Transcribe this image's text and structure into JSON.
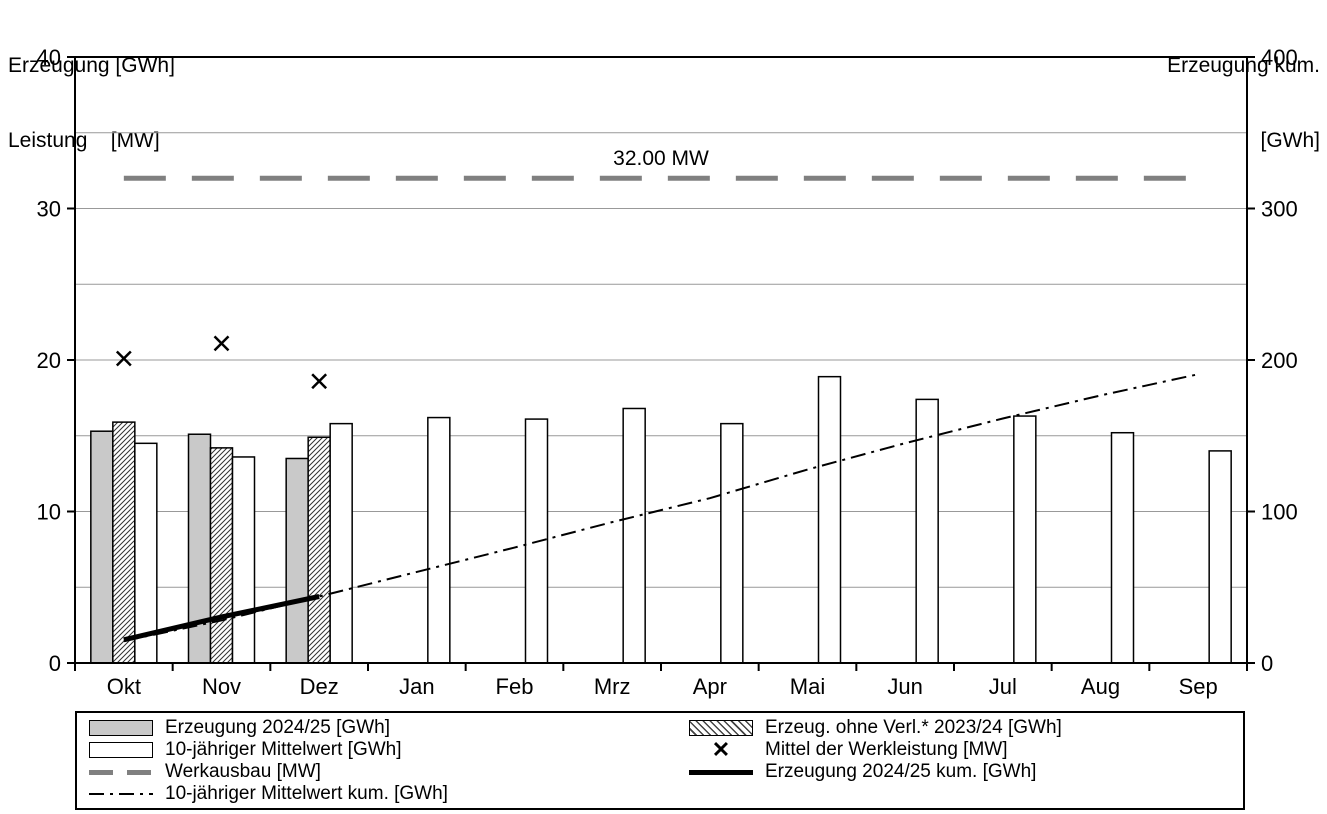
{
  "titles": {
    "left_line1": "Erzeugung [GWh]",
    "left_line2": "Leistung    [MW]",
    "right_line1": "Erzeugung kum.",
    "right_line2": "[GWh]"
  },
  "colors": {
    "bar_gray": "#c9c9c9",
    "werkausbau_line": "#808080",
    "grid": "#999999",
    "black": "#000000"
  },
  "legend": {
    "items": [
      {
        "label": "Erzeugung 2024/25 [GWh]",
        "swatch": "bar-gray"
      },
      {
        "label": "10-jähriger Mittelwert [GWh]",
        "swatch": "bar-white"
      },
      {
        "label": "Werkausbau [MW]",
        "swatch": "line-dashed-gray"
      },
      {
        "label": "10-jähriger Mittelwert kum. [GWh]",
        "swatch": "line-dashdot"
      },
      {
        "label": "Erzeug. ohne Verl.* 2023/24 [GWh]",
        "swatch": "bar-hatched"
      },
      {
        "label": "Mittel der Werkleistung [MW]",
        "swatch": "marker-x",
        "glyph": "✕"
      },
      {
        "label": "Erzeugung 2024/25 kum. [GWh]",
        "swatch": "line-thick-black"
      }
    ]
  },
  "chart_data": {
    "type": "bar",
    "categories": [
      "Okt",
      "Nov",
      "Dez",
      "Jan",
      "Feb",
      "Mrz",
      "Apr",
      "Mai",
      "Jun",
      "Jul",
      "Aug",
      "Sep"
    ],
    "left_axis": {
      "title": "Erzeugung [GWh] / Leistung [MW]",
      "min": 0,
      "max": 40,
      "ticks": [
        0,
        10,
        20,
        30,
        40
      ],
      "grid_step": 5
    },
    "right_axis": {
      "title": "Erzeugung kum. [GWh]",
      "min": 0,
      "max": 400,
      "ticks": [
        0,
        100,
        200,
        300,
        400
      ]
    },
    "series": [
      {
        "name": "Erzeugung 2024/25 [GWh]",
        "kind": "bar",
        "style": "gray",
        "axis": "left",
        "values": [
          15.3,
          15.1,
          13.5,
          null,
          null,
          null,
          null,
          null,
          null,
          null,
          null,
          null
        ]
      },
      {
        "name": "Erzeug. ohne Verl.* 2023/24 [GWh]",
        "kind": "bar",
        "style": "hatched",
        "axis": "left",
        "values": [
          15.9,
          14.2,
          14.9,
          null,
          null,
          null,
          null,
          null,
          null,
          null,
          null,
          null
        ]
      },
      {
        "name": "10-jähriger Mittelwert [GWh]",
        "kind": "bar",
        "style": "white",
        "axis": "left",
        "values": [
          14.5,
          13.6,
          15.8,
          16.2,
          16.1,
          16.8,
          15.8,
          18.9,
          17.4,
          16.3,
          15.2,
          14.0
        ]
      },
      {
        "name": "Mittel der Werkleistung [MW]",
        "kind": "marker-x",
        "axis": "left",
        "values": [
          20.1,
          21.1,
          18.6,
          null,
          null,
          null,
          null,
          null,
          null,
          null,
          null,
          null
        ]
      },
      {
        "name": "Werkausbau [MW]",
        "kind": "hline-dashed",
        "axis": "left",
        "value": 32,
        "label": "32.00 MW"
      },
      {
        "name": "Erzeugung 2024/25 kum. [GWh]",
        "kind": "line-solid-thick",
        "axis": "right",
        "values": [
          15.3,
          30.4,
          43.9,
          null,
          null,
          null,
          null,
          null,
          null,
          null,
          null,
          null
        ]
      },
      {
        "name": "10-jähriger Mittelwert kum. [GWh]",
        "kind": "line-dashdot",
        "axis": "right",
        "values": [
          14.5,
          28.1,
          43.9,
          60.1,
          76.2,
          93.0,
          108.8,
          127.7,
          145.1,
          161.4,
          176.6,
          190.6
        ]
      }
    ]
  }
}
